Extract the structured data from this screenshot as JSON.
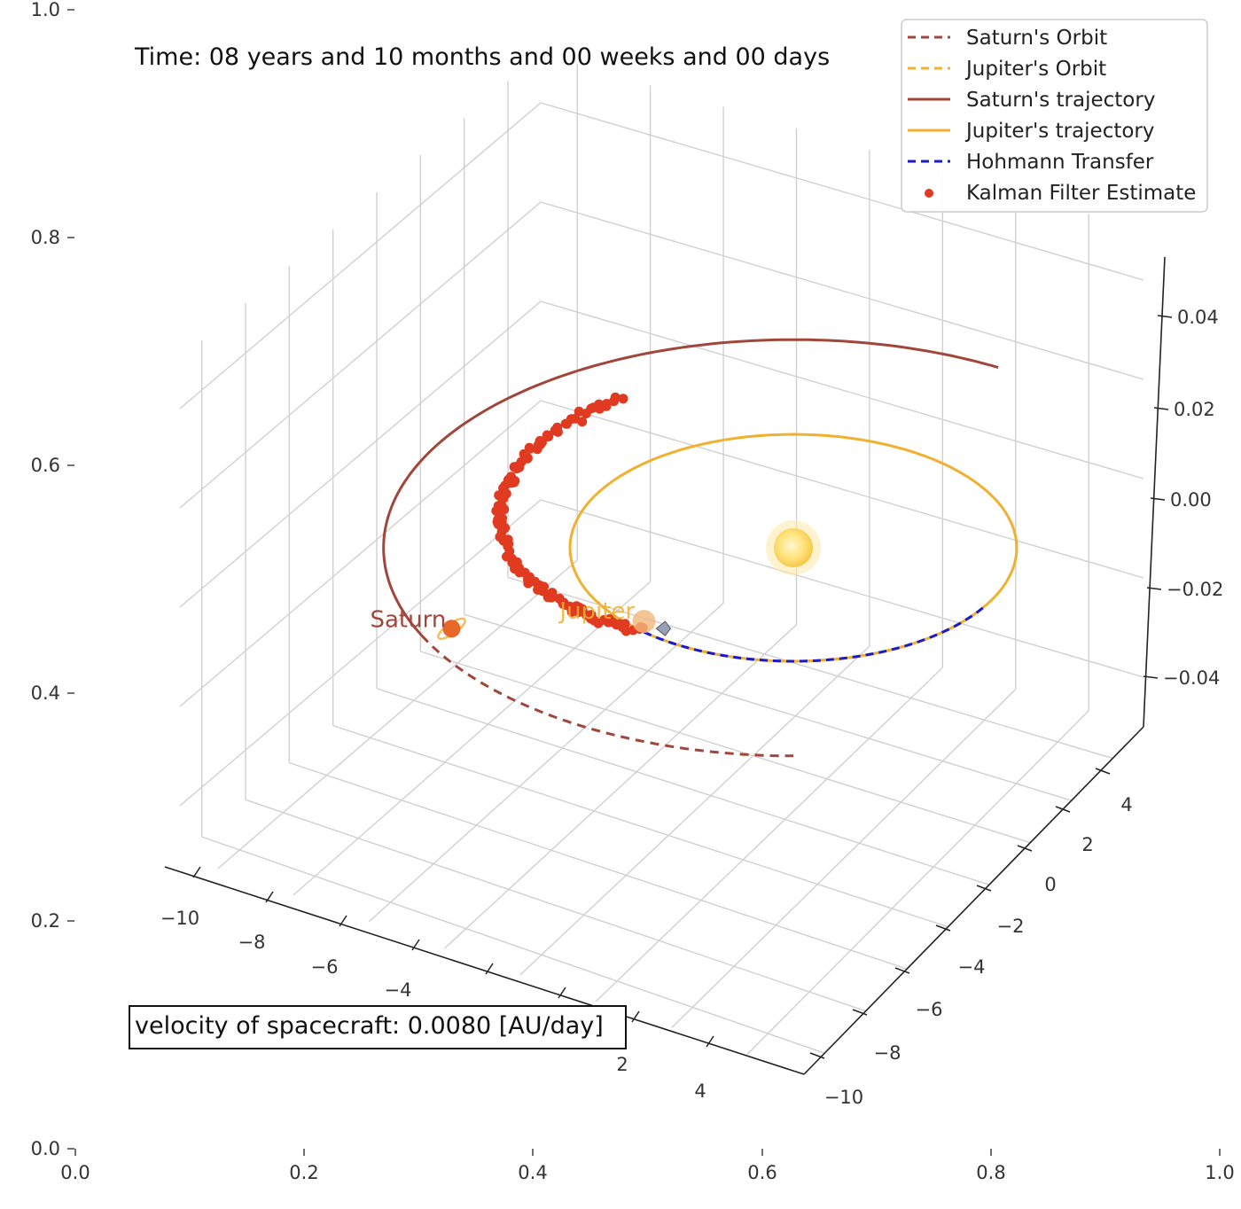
{
  "figure": {
    "time_label": "Time: 08 years and 10 months and 00 weeks and 00 days",
    "velocity_label": "velocity of spacecraft: 0.0080 [AU/day]",
    "planet_labels": {
      "jupiter": "Jupiter",
      "saturn": "Saturn"
    }
  },
  "legend": [
    {
      "label": "Saturn's Orbit",
      "style": "dashed",
      "color": "#a0463a"
    },
    {
      "label": "Jupiter's Orbit",
      "style": "dashed",
      "color": "#f0b030"
    },
    {
      "label": "Saturn's trajectory",
      "style": "solid",
      "color": "#a0463a"
    },
    {
      "label": "Jupiter's trajectory",
      "style": "solid",
      "color": "#f0b030"
    },
    {
      "label": "Hohmann Transfer",
      "style": "dashed",
      "color": "#1a1ad0"
    },
    {
      "label": "Kalman Filter Estimate",
      "style": "dot",
      "color": "#e03a20"
    }
  ],
  "chart_data": {
    "type": "line",
    "projection": "3d",
    "background_axes": {
      "x_ticks": [
        "0.0",
        "0.2",
        "0.4",
        "0.6",
        "0.8",
        "1.0"
      ],
      "y_ticks": [
        "0.0",
        "0.2",
        "0.4",
        "0.6",
        "0.8",
        "1.0"
      ]
    },
    "axes3d": {
      "x_ticks": [
        "−10",
        "−8",
        "−6",
        "−4",
        "2",
        "4"
      ],
      "y_ticks": [
        "4",
        "2",
        "0",
        "−2",
        "−4",
        "−6",
        "−8",
        "−10"
      ],
      "z_ticks": [
        "0.04",
        "0.02",
        "0.00",
        "−0.02",
        "−0.04"
      ],
      "xlim": [
        -11,
        5.5
      ],
      "ylim": [
        -11,
        5.5
      ],
      "zlim": [
        -0.05,
        0.05
      ]
    },
    "sun": {
      "x": 0,
      "y": 0,
      "z": 0
    },
    "jupiter_orbit_radius_au": 5.2,
    "saturn_orbit_radius_au": 9.54,
    "jupiter_position_deg": 228,
    "saturn_position_deg": 205,
    "saturn_trajectory_deg": [
      60,
      205
    ],
    "saturn_orbit_dashed_deg": [
      205,
      270
    ],
    "hohmann_transfer_deg": [
      228,
      330
    ],
    "kalman_estimates_deg": [
      120,
      228
    ],
    "kalman_point_count": 120,
    "colors": {
      "saturn": "#a0463a",
      "jupiter": "#f0b030",
      "hohmann": "#1a1ad0",
      "kalman": "#e03a20",
      "sun": "#ffe27a"
    }
  }
}
